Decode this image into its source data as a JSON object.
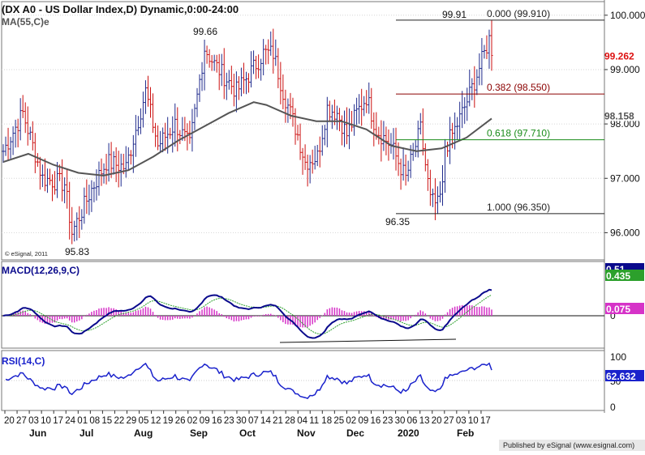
{
  "window": {
    "title": "(DX A0 - US Dollar Index,D) Dynamic,0:00-24:00"
  },
  "credits": {
    "esignal_small": "© eSignal, 2011",
    "published": "Published by eSignal (www.esignal.com)"
  },
  "colors": {
    "up_bar": "#1f2a8c",
    "down_bar": "#cc1111",
    "ma": "#555555",
    "macd": "#0a0a8c",
    "signal": "#2ca02c",
    "histogram": "#d633c8",
    "rsi": "#1a22cc",
    "fib_0": "#222222",
    "fib_382": "#8b0000",
    "fib_618": "#1a8c1a",
    "price_marker": "#dd1111",
    "ma_marker": "#555555",
    "macd_marker": "#0a0a8c",
    "signal_marker": "#2ca02c",
    "hist_marker": "#d633c8",
    "rsi_marker": "#1a22cc"
  },
  "chart_data": [
    {
      "type": "line",
      "panel": "price",
      "title": "(DX A0 - US Dollar Index,D) Dynamic,0:00-24:00",
      "ylim": [
        95.5,
        100.25
      ],
      "yticks": [
        "100.000",
        "99.000",
        "98.000",
        "97.000",
        "96.000"
      ],
      "ytick_values": [
        100,
        99,
        98,
        97,
        96
      ],
      "series": [
        {
          "name": "MA(55,C)e",
          "values": [
            {
              "x": "2019-05-20",
              "y": 97.3
            },
            {
              "x": "2019-06-03",
              "y": 97.45
            },
            {
              "x": "2019-06-17",
              "y": 97.25
            },
            {
              "x": "2019-07-01",
              "y": 97.1
            },
            {
              "x": "2019-07-15",
              "y": 97.05
            },
            {
              "x": "2019-07-29",
              "y": 97.15
            },
            {
              "x": "2019-08-12",
              "y": 97.4
            },
            {
              "x": "2019-08-26",
              "y": 97.7
            },
            {
              "x": "2019-09-09",
              "y": 97.95
            },
            {
              "x": "2019-09-23",
              "y": 98.2
            },
            {
              "x": "2019-10-07",
              "y": 98.4
            },
            {
              "x": "2019-10-14",
              "y": 98.35
            },
            {
              "x": "2019-10-28",
              "y": 98.15
            },
            {
              "x": "2019-11-11",
              "y": 98.05
            },
            {
              "x": "2019-11-25",
              "y": 98.05
            },
            {
              "x": "2019-12-09",
              "y": 97.9
            },
            {
              "x": "2019-12-23",
              "y": 97.6
            },
            {
              "x": "2020-01-06",
              "y": 97.5
            },
            {
              "x": "2020-01-20",
              "y": 97.55
            },
            {
              "x": "2020-02-03",
              "y": 97.75
            },
            {
              "x": "2020-02-17",
              "y": 98.1
            }
          ]
        }
      ],
      "price_annotations": [
        {
          "text": "95.83",
          "x": "2019-06-25",
          "y": 95.83
        },
        {
          "text": "99.66",
          "x": "2019-09-03",
          "y": 99.66
        },
        {
          "text": "96.35",
          "x": "2019-12-31",
          "y": 96.35
        },
        {
          "text": "99.91",
          "x": "2020-02-19",
          "y": 99.91
        }
      ],
      "fibonacci": [
        {
          "level": "0.000",
          "value": 99.91,
          "label": "0.000 (99.910)"
        },
        {
          "level": "0.382",
          "value": 98.55,
          "label": "0.382 (98.550)"
        },
        {
          "level": "0.618",
          "value": 97.71,
          "label": "0.618 (97.710)"
        },
        {
          "level": "1.000",
          "value": 96.35,
          "label": "1.000 (96.350)"
        }
      ],
      "value_markers": [
        {
          "label": "99.262",
          "value": 99.262,
          "color_key": "price_marker"
        },
        {
          "label": "98.158",
          "value": 98.158,
          "color_key": "ma_marker"
        }
      ]
    },
    {
      "type": "line",
      "panel": "macd",
      "title": "MACD(12,26,9,C)",
      "series": [
        {
          "name": "MACD",
          "last": 0.51
        },
        {
          "name": "Signal",
          "last": 0.435
        },
        {
          "name": "Histogram",
          "last": 0.075
        }
      ],
      "yticks": [
        "0"
      ],
      "value_markers": [
        {
          "label": "0.51",
          "value": 0.51,
          "color_key": "macd_marker"
        },
        {
          "label": "0.435",
          "value": 0.435,
          "color_key": "signal_marker"
        },
        {
          "label": "0.075",
          "value": 0.075,
          "color_key": "hist_marker"
        }
      ]
    },
    {
      "type": "line",
      "panel": "rsi",
      "title": "RSI(14,C)",
      "yticks": [
        "100",
        "50",
        "0"
      ],
      "value_markers": [
        {
          "label": "62.632",
          "value": 62.632,
          "color_key": "rsi_marker"
        }
      ]
    }
  ],
  "x_axis": {
    "day_ticks": [
      "20",
      "27",
      "03",
      "10",
      "17",
      "24",
      "01",
      "08",
      "15",
      "22",
      "29",
      "05",
      "12",
      "19",
      "26",
      "02",
      "09",
      "16",
      "23",
      "30",
      "07",
      "14",
      "21",
      "28",
      "04",
      "11",
      "18",
      "25",
      "02",
      "09",
      "16",
      "23",
      "30",
      "06",
      "13",
      "20",
      "27",
      "03",
      "10",
      "17"
    ],
    "month_labels": [
      "Jun",
      "Jul",
      "Aug",
      "Sep",
      "Oct",
      "Nov",
      "Dec",
      "2020",
      "Feb"
    ]
  }
}
